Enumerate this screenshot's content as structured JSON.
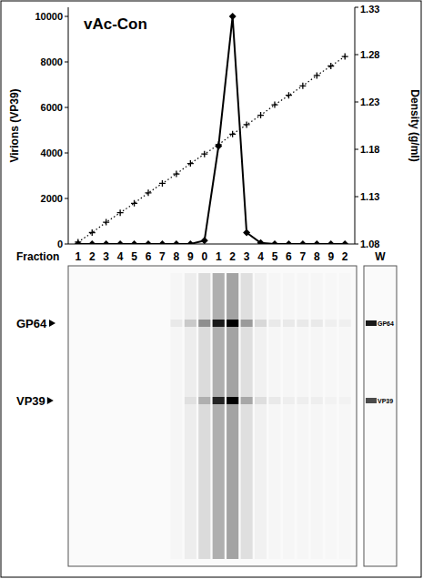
{
  "chart_data": {
    "type": "line",
    "title": "vAc-Con",
    "x_label": "Fraction",
    "y_label": "Virions (VP39)",
    "y2_label": "Density (g/ml)",
    "categories": [
      "1",
      "2",
      "3",
      "4",
      "5",
      "6",
      "7",
      "8",
      "9",
      "0",
      "1",
      "2",
      "3",
      "4",
      "5",
      "6",
      "7",
      "8",
      "9",
      "2"
    ],
    "ylim": [
      0,
      10400
    ],
    "yticks": [
      0,
      2000,
      4000,
      6000,
      8000,
      10000
    ],
    "y2lim": [
      1.08,
      1.33
    ],
    "y2ticks": [
      1.08,
      1.13,
      1.18,
      1.23,
      1.28,
      1.33
    ],
    "tick_labels": "y",
    "series": [
      {
        "color": "#000000",
        "marker": "diamond",
        "line_style": "solid",
        "values": [
          0,
          0,
          0,
          0,
          0,
          0,
          0,
          0,
          0,
          150,
          4300,
          10000,
          500,
          50,
          0,
          0,
          0,
          0,
          0,
          0
        ]
      },
      {
        "axis": "y2",
        "color": "#000000",
        "marker": "plus",
        "line_style": "dotted",
        "values": [
          1.082,
          1.092,
          1.103,
          1.113,
          1.123,
          1.134,
          1.144,
          1.154,
          1.165,
          1.175,
          1.185,
          1.196,
          1.206,
          1.216,
          1.227,
          1.237,
          1.247,
          1.258,
          1.268,
          1.278
        ]
      }
    ]
  },
  "blot": {
    "extra_lane": "W",
    "bands": [
      {
        "label": "GP64",
        "intensity": [
          0,
          0,
          0,
          0,
          0,
          0,
          0,
          0.05,
          0.15,
          0.35,
          0.85,
          1,
          0.3,
          0.1,
          0.05,
          0.05,
          0.05,
          0.05,
          0.03,
          0.03
        ],
        "w_intensity": 0.9
      },
      {
        "label": "VP39",
        "intensity": [
          0,
          0,
          0,
          0,
          0,
          0,
          0,
          0,
          0.05,
          0.2,
          0.8,
          1,
          0.25,
          0.08,
          0.05,
          0.03,
          0.03,
          0.03,
          0.02,
          0.02
        ],
        "w_intensity": 0.7
      }
    ]
  }
}
